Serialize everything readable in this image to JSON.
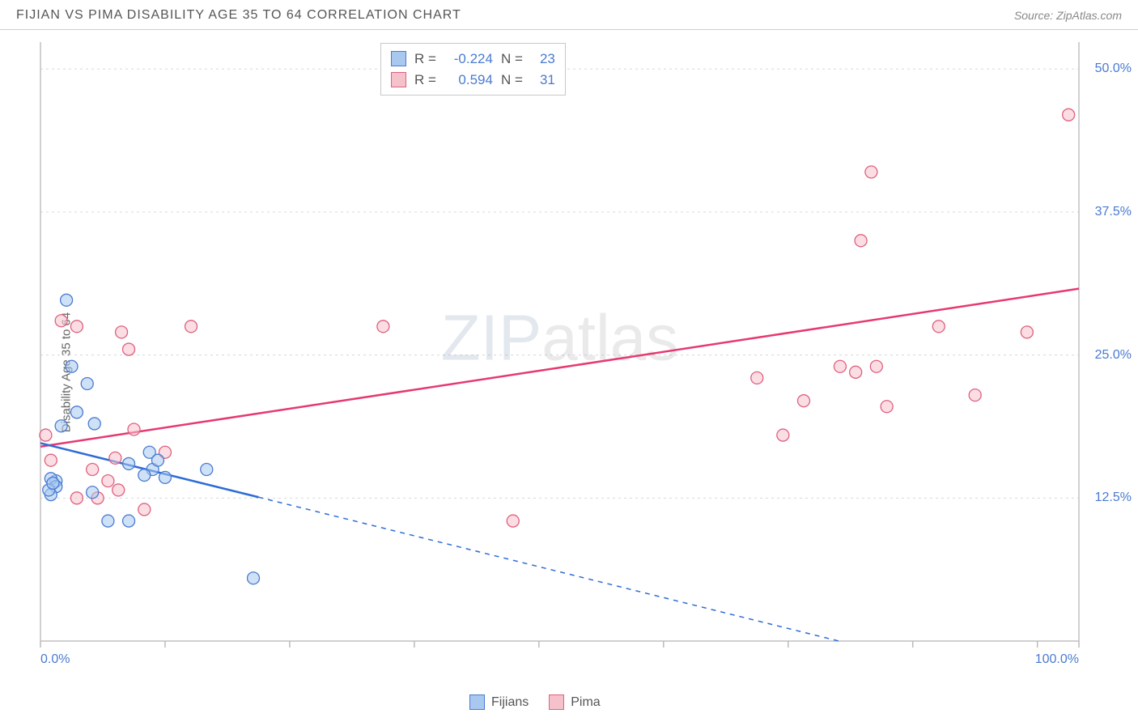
{
  "header": {
    "title": "FIJIAN VS PIMA DISABILITY AGE 35 TO 64 CORRELATION CHART",
    "source": "Source: ZipAtlas.com"
  },
  "ylabel": "Disability Age 35 to 64",
  "watermark": {
    "zip": "ZIP",
    "atlas": "atlas"
  },
  "axes": {
    "xmin": 0,
    "xmax": 100,
    "ymin": 0,
    "ymax": 52,
    "xticks": [
      0,
      12,
      24,
      36,
      48,
      60,
      72,
      84,
      96,
      100
    ],
    "xtick_labels_shown": {
      "0": "0.0%",
      "100": "100.0%"
    },
    "yticks": [
      12.5,
      25.0,
      37.5,
      50.0
    ],
    "ytick_labels": [
      "12.5%",
      "25.0%",
      "37.5%",
      "50.0%"
    ],
    "grid_color": "#d8d8d8",
    "axis_color": "#c0c0c0",
    "tick_color": "#bbbbbb"
  },
  "colors": {
    "fijian_fill": "#a8c8f0",
    "fijian_stroke": "#4a7bd0",
    "pima_fill": "#f5c2cc",
    "pima_stroke": "#e06080",
    "fijian_line": "#2e6cd6",
    "pima_line": "#e63970",
    "value_text": "#4a7bd0"
  },
  "marker_radius": 7.5,
  "line_width": 2.5,
  "legend_stats": {
    "rows": [
      {
        "swatch": "fijian",
        "r_label": "R =",
        "r_val": "-0.224",
        "n_label": "N =",
        "n_val": "23"
      },
      {
        "swatch": "pima",
        "r_label": "R =",
        "r_val": "0.594",
        "n_label": "N =",
        "n_val": "31"
      }
    ]
  },
  "series_legend": {
    "items": [
      {
        "swatch": "fijian",
        "label": "Fijians"
      },
      {
        "swatch": "pima",
        "label": "Pima"
      }
    ]
  },
  "series": {
    "fijian": {
      "points": [
        [
          1.5,
          14.0
        ],
        [
          1.0,
          14.2
        ],
        [
          1.5,
          13.5
        ],
        [
          1.0,
          12.8
        ],
        [
          0.8,
          13.2
        ],
        [
          1.2,
          13.8
        ],
        [
          2.0,
          18.8
        ],
        [
          2.5,
          29.8
        ],
        [
          3.0,
          24.0
        ],
        [
          3.5,
          20.0
        ],
        [
          4.5,
          22.5
        ],
        [
          5.0,
          13.0
        ],
        [
          5.2,
          19.0
        ],
        [
          6.5,
          10.5
        ],
        [
          8.5,
          15.5
        ],
        [
          8.5,
          10.5
        ],
        [
          10.5,
          16.5
        ],
        [
          10.8,
          15.0
        ],
        [
          11.3,
          15.8
        ],
        [
          10.0,
          14.5
        ],
        [
          12.0,
          14.3
        ],
        [
          16.0,
          15.0
        ],
        [
          20.5,
          5.5
        ]
      ],
      "trend": {
        "x1": 0,
        "y1": 17.3,
        "x2": 100,
        "y2": -5.2,
        "solid_until_x": 21
      }
    },
    "pima": {
      "points": [
        [
          0.5,
          18.0
        ],
        [
          1.0,
          15.8
        ],
        [
          2.0,
          28.0
        ],
        [
          3.5,
          27.5
        ],
        [
          3.5,
          12.5
        ],
        [
          5.0,
          15.0
        ],
        [
          5.5,
          12.5
        ],
        [
          6.5,
          14.0
        ],
        [
          7.2,
          16.0
        ],
        [
          7.5,
          13.2
        ],
        [
          7.8,
          27.0
        ],
        [
          8.5,
          25.5
        ],
        [
          9.0,
          18.5
        ],
        [
          10.0,
          11.5
        ],
        [
          12.0,
          16.5
        ],
        [
          14.5,
          27.5
        ],
        [
          33.0,
          27.5
        ],
        [
          45.5,
          10.5
        ],
        [
          69.0,
          23.0
        ],
        [
          71.5,
          18.0
        ],
        [
          73.5,
          21.0
        ],
        [
          77.0,
          24.0
        ],
        [
          78.5,
          23.5
        ],
        [
          79.0,
          35.0
        ],
        [
          80.0,
          41.0
        ],
        [
          80.5,
          24.0
        ],
        [
          81.5,
          20.5
        ],
        [
          86.5,
          27.5
        ],
        [
          90.0,
          21.5
        ],
        [
          95.0,
          27.0
        ],
        [
          99.0,
          46.0
        ]
      ],
      "trend": {
        "x1": 0,
        "y1": 17.0,
        "x2": 100,
        "y2": 30.8,
        "solid_until_x": 100
      }
    }
  }
}
